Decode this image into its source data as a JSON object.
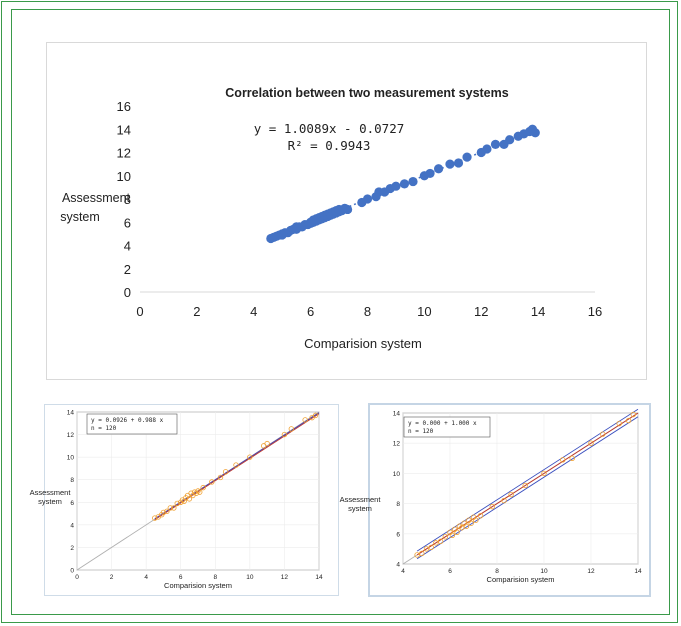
{
  "chart_data": [
    {
      "type": "scatter",
      "title": "Correlation between two measurement systems",
      "xlabel": "Comparision system",
      "ylabel": "Assessment system",
      "xlim": [
        0,
        16
      ],
      "ylim": [
        0,
        16
      ],
      "xticks": [
        0,
        2,
        4,
        6,
        8,
        10,
        12,
        14,
        16
      ],
      "yticks": [
        0,
        2,
        4,
        6,
        8,
        10,
        12,
        14,
        16
      ],
      "annotations": [
        "y = 1.0089x - 0.0727",
        "R² = 0.9943"
      ],
      "trendline": {
        "slope": 1.0089,
        "intercept": -0.0727,
        "x_range": [
          4.6,
          13.9
        ]
      },
      "color": "#4472c4",
      "points": [
        [
          4.6,
          4.6
        ],
        [
          4.7,
          4.7
        ],
        [
          4.8,
          4.8
        ],
        [
          4.9,
          4.9
        ],
        [
          5.0,
          5.0
        ],
        [
          5.0,
          4.9
        ],
        [
          5.1,
          5.1
        ],
        [
          5.2,
          5.1
        ],
        [
          5.3,
          5.3
        ],
        [
          5.4,
          5.4
        ],
        [
          5.5,
          5.4
        ],
        [
          5.5,
          5.6
        ],
        [
          5.6,
          5.6
        ],
        [
          5.7,
          5.6
        ],
        [
          5.8,
          5.8
        ],
        [
          5.9,
          5.8
        ],
        [
          6.0,
          6.0
        ],
        [
          6.0,
          5.9
        ],
        [
          6.1,
          6.0
        ],
        [
          6.1,
          6.2
        ],
        [
          6.2,
          6.1
        ],
        [
          6.2,
          6.3
        ],
        [
          6.3,
          6.2
        ],
        [
          6.3,
          6.4
        ],
        [
          6.4,
          6.3
        ],
        [
          6.4,
          6.5
        ],
        [
          6.5,
          6.4
        ],
        [
          6.5,
          6.6
        ],
        [
          6.6,
          6.5
        ],
        [
          6.6,
          6.7
        ],
        [
          6.7,
          6.6
        ],
        [
          6.7,
          6.8
        ],
        [
          6.8,
          6.7
        ],
        [
          6.8,
          6.9
        ],
        [
          6.9,
          6.8
        ],
        [
          6.9,
          7.0
        ],
        [
          7.0,
          6.9
        ],
        [
          7.0,
          7.1
        ],
        [
          7.1,
          7.0
        ],
        [
          7.2,
          7.2
        ],
        [
          7.3,
          7.1
        ],
        [
          7.8,
          7.7
        ],
        [
          8.0,
          8.0
        ],
        [
          8.3,
          8.2
        ],
        [
          8.4,
          8.6
        ],
        [
          8.6,
          8.6
        ],
        [
          8.8,
          8.9
        ],
        [
          9.0,
          9.1
        ],
        [
          9.3,
          9.3
        ],
        [
          9.6,
          9.5
        ],
        [
          10.0,
          10.0
        ],
        [
          10.2,
          10.2
        ],
        [
          10.5,
          10.6
        ],
        [
          10.9,
          11.0
        ],
        [
          11.2,
          11.1
        ],
        [
          11.5,
          11.6
        ],
        [
          12.0,
          12.0
        ],
        [
          12.2,
          12.3
        ],
        [
          12.5,
          12.7
        ],
        [
          12.8,
          12.7
        ],
        [
          13.0,
          13.1
        ],
        [
          13.3,
          13.4
        ],
        [
          13.5,
          13.6
        ],
        [
          13.7,
          13.8
        ],
        [
          13.8,
          14.0
        ],
        [
          13.9,
          13.7
        ]
      ]
    },
    {
      "type": "scatter",
      "xlabel": "Comparision system",
      "ylabel": "Assessment system",
      "xlim": [
        0,
        14
      ],
      "ylim": [
        0,
        14
      ],
      "xticks": [
        0,
        2,
        4,
        6,
        8,
        10,
        12,
        14
      ],
      "yticks": [
        0,
        2,
        4,
        6,
        8,
        10,
        12,
        14
      ],
      "legend_lines": [
        "y = 0.0926 + 0.988  x",
        "n = 120"
      ],
      "fit": {
        "intercept": 0.0926,
        "slope": 0.988
      },
      "points": [
        [
          4.5,
          4.6
        ],
        [
          4.7,
          4.7
        ],
        [
          4.9,
          4.9
        ],
        [
          5.0,
          5.1
        ],
        [
          5.2,
          5.2
        ],
        [
          5.4,
          5.5
        ],
        [
          5.6,
          5.5
        ],
        [
          5.8,
          5.9
        ],
        [
          6.0,
          6.0
        ],
        [
          6.1,
          6.2
        ],
        [
          6.2,
          6.1
        ],
        [
          6.3,
          6.4
        ],
        [
          6.4,
          6.6
        ],
        [
          6.5,
          6.3
        ],
        [
          6.6,
          6.8
        ],
        [
          6.7,
          6.6
        ],
        [
          6.8,
          6.9
        ],
        [
          6.9,
          6.8
        ],
        [
          7.0,
          7.0
        ],
        [
          7.1,
          6.9
        ],
        [
          7.3,
          7.3
        ],
        [
          7.8,
          7.8
        ],
        [
          8.3,
          8.2
        ],
        [
          8.6,
          8.7
        ],
        [
          9.2,
          9.3
        ],
        [
          10.0,
          10.0
        ],
        [
          10.8,
          11.0
        ],
        [
          11.0,
          11.2
        ],
        [
          12.0,
          12.0
        ],
        [
          12.4,
          12.5
        ],
        [
          13.2,
          13.3
        ],
        [
          13.6,
          13.5
        ],
        [
          13.8,
          13.7
        ]
      ]
    },
    {
      "type": "scatter",
      "xlabel": "Comparision system",
      "ylabel": "Assessment system",
      "xlim": [
        4,
        14
      ],
      "ylim": [
        4,
        14
      ],
      "xticks": [
        4,
        6,
        8,
        10,
        12,
        14
      ],
      "yticks": [
        4,
        6,
        8,
        10,
        12,
        14
      ],
      "legend_lines": [
        "y = 0.000  + 1.000  x",
        "n = 120"
      ],
      "fit": {
        "intercept": 0.0,
        "slope": 1.0
      },
      "points": [
        [
          4.6,
          4.6
        ],
        [
          4.8,
          4.7
        ],
        [
          5.0,
          5.0
        ],
        [
          5.2,
          5.1
        ],
        [
          5.4,
          5.4
        ],
        [
          5.6,
          5.5
        ],
        [
          5.8,
          5.8
        ],
        [
          6.0,
          6.1
        ],
        [
          6.1,
          5.9
        ],
        [
          6.2,
          6.3
        ],
        [
          6.3,
          6.1
        ],
        [
          6.4,
          6.5
        ],
        [
          6.5,
          6.4
        ],
        [
          6.6,
          6.7
        ],
        [
          6.7,
          6.5
        ],
        [
          6.8,
          6.9
        ],
        [
          6.9,
          6.7
        ],
        [
          7.0,
          7.1
        ],
        [
          7.1,
          6.9
        ],
        [
          7.3,
          7.2
        ],
        [
          7.8,
          7.8
        ],
        [
          8.3,
          8.2
        ],
        [
          8.6,
          8.6
        ],
        [
          9.2,
          9.2
        ],
        [
          10.0,
          10.0
        ],
        [
          10.8,
          10.9
        ],
        [
          11.2,
          11.0
        ],
        [
          12.0,
          12.0
        ],
        [
          12.5,
          12.6
        ],
        [
          13.2,
          13.3
        ],
        [
          13.6,
          13.5
        ],
        [
          13.8,
          13.9
        ]
      ]
    }
  ]
}
